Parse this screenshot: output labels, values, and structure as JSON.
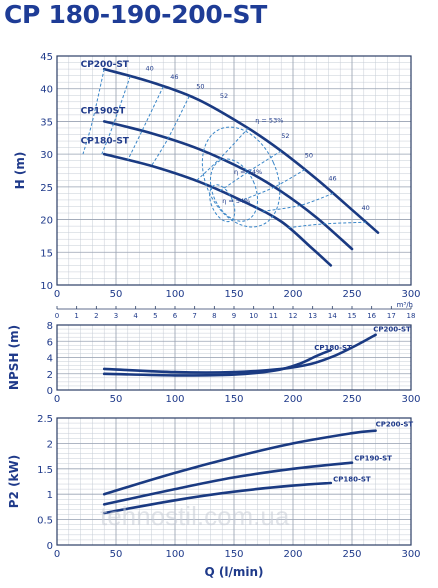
{
  "title": "CP 180-190-200-ST",
  "watermark": "tehnostil.com.ua",
  "colors": {
    "curve": "#1a3a82",
    "grid": "#c6ccd6",
    "iso": "#3a86c8",
    "frame": "#2b3e66",
    "text": "#1f3a8a"
  },
  "chart_data": [
    {
      "type": "line",
      "id": "head",
      "ylabel": "H (m)",
      "xlabel": "",
      "xlim": [
        0,
        300
      ],
      "ylim": [
        10,
        45
      ],
      "x_ticks": [
        0,
        50,
        100,
        150,
        200,
        250,
        300
      ],
      "y_ticks": [
        10,
        15,
        20,
        25,
        30,
        35,
        40,
        45
      ],
      "secondary_axis": {
        "unit": "m³/h",
        "ticks": [
          0,
          1,
          2,
          3,
          4,
          5,
          6,
          7,
          8,
          9,
          10,
          11,
          12,
          13,
          14,
          15,
          16,
          17,
          18
        ]
      },
      "grid": true,
      "series": [
        {
          "name": "CP200-ST",
          "x": [
            40,
            80,
            120,
            160,
            190,
            220,
            250,
            272
          ],
          "y": [
            43,
            41,
            38.3,
            34.2,
            30.5,
            26.2,
            21.5,
            18
          ]
        },
        {
          "name": "CP190ST",
          "x": [
            40,
            80,
            120,
            160,
            190,
            220,
            250
          ],
          "y": [
            35,
            33.2,
            30.8,
            27.5,
            24.3,
            20.3,
            15.5
          ]
        },
        {
          "name": "CP180-ST",
          "x": [
            40,
            80,
            120,
            160,
            190,
            215,
            232
          ],
          "y": [
            30,
            28.2,
            25.8,
            22.6,
            19.7,
            15.8,
            13
          ]
        }
      ],
      "efficiency_labels": [
        "40",
        "46",
        "50",
        "52",
        "η = 53%",
        "52",
        "50",
        "46",
        "40",
        "η = 54%",
        "η = 54%"
      ],
      "curve_labels": [
        "CP200-ST",
        "CP190ST",
        "CP180-ST"
      ]
    },
    {
      "type": "line",
      "id": "npsh",
      "ylabel": "NPSH (m)",
      "xlim": [
        0,
        300
      ],
      "ylim": [
        0,
        8
      ],
      "x_ticks": [
        0,
        50,
        100,
        150,
        200,
        250,
        300
      ],
      "y_ticks": [
        0,
        2,
        4,
        6,
        8
      ],
      "grid": true,
      "series": [
        {
          "name": "CP200-ST",
          "x": [
            40,
            100,
            150,
            190,
            215,
            235,
            255,
            270
          ],
          "y": [
            2.6,
            2.2,
            2.2,
            2.6,
            3.2,
            4.2,
            5.6,
            6.8
          ]
        },
        {
          "name": "CP180-ST",
          "x": [
            40,
            100,
            150,
            185,
            205,
            220,
            232
          ],
          "y": [
            2.0,
            1.8,
            1.9,
            2.4,
            3.2,
            4.2,
            4.9
          ]
        }
      ],
      "curve_labels": [
        "CP200-ST",
        "CP180-ST"
      ]
    },
    {
      "type": "line",
      "id": "power",
      "ylabel": "P2 (kW)",
      "xlabel": "Q (l/min)",
      "xlim": [
        0,
        300
      ],
      "ylim": [
        0,
        2.5
      ],
      "x_ticks": [
        0,
        50,
        100,
        150,
        200,
        250,
        300
      ],
      "y_ticks": [
        0,
        0.5,
        1,
        1.5,
        2,
        2.5
      ],
      "grid": true,
      "series": [
        {
          "name": "CP200-ST",
          "x": [
            40,
            100,
            150,
            200,
            250,
            270
          ],
          "y": [
            1.0,
            1.42,
            1.73,
            2.0,
            2.2,
            2.25
          ]
        },
        {
          "name": "CP190-ST",
          "x": [
            40,
            100,
            150,
            200,
            250
          ],
          "y": [
            0.8,
            1.1,
            1.33,
            1.5,
            1.62
          ]
        },
        {
          "name": "CP180-ST",
          "x": [
            40,
            100,
            150,
            200,
            232
          ],
          "y": [
            0.63,
            0.88,
            1.05,
            1.17,
            1.22
          ]
        }
      ],
      "curve_labels": [
        "CP200-ST",
        "CP190-ST",
        "CP180-ST"
      ]
    }
  ]
}
